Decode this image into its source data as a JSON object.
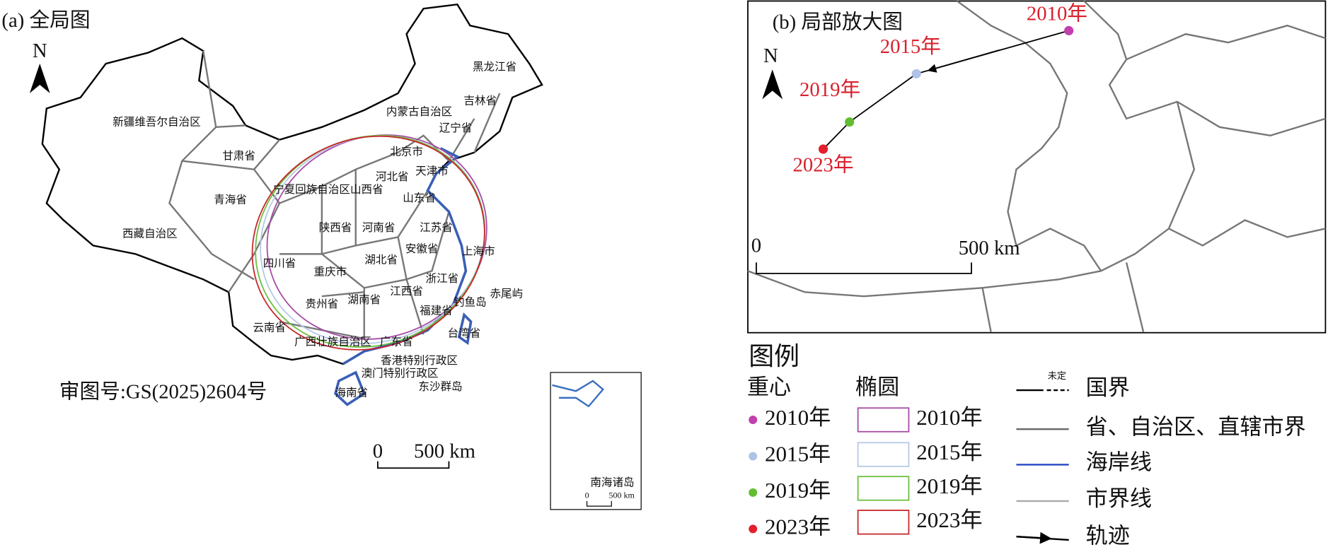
{
  "panel_a": {
    "title": "(a) 全局图",
    "north": "N",
    "labels": [
      "新疆维吾尔自治区",
      "甘肃省",
      "青海省",
      "西藏自治区",
      "内蒙古自治区",
      "黑龙江省",
      "吉林省",
      "辽宁省",
      "北京市",
      "天津市",
      "河北省",
      "山西省",
      "宁夏回族自治区",
      "山东省",
      "陕西省",
      "河南省",
      "江苏省",
      "上海市",
      "安徽省",
      "湖北省",
      "四川省",
      "重庆市",
      "浙江省",
      "江西省",
      "湖南省",
      "贵州省",
      "福建省",
      "钓鱼岛",
      "赤尾屿",
      "云南省",
      "台湾省",
      "广西壮族自治区",
      "广东省",
      "香港特别行政区",
      "澳门特别行政区",
      "东沙群岛",
      "海南省"
    ],
    "approval": "审图号:GS(2025)2604号",
    "scale": {
      "zero": "0",
      "distance": "500 km"
    },
    "inset": {
      "title": "南海诸岛",
      "zero": "0",
      "distance": "500 km"
    }
  },
  "panel_b": {
    "title": "(b) 局部放大图",
    "north": "N",
    "centroids": [
      {
        "year": "2010年",
        "color": "#c23fb0"
      },
      {
        "year": "2015年",
        "color": "#aec3e6"
      },
      {
        "year": "2019年",
        "color": "#62be30"
      },
      {
        "year": "2023年",
        "color": "#e3202c"
      }
    ],
    "scale": {
      "zero": "0",
      "distance": "500 km"
    }
  },
  "legend": {
    "title": "图例",
    "centroid_header": "重心",
    "ellipse_header": "椭圆",
    "centroids": [
      {
        "label": "2010年",
        "color": "#c23fb0"
      },
      {
        "label": "2015年",
        "color": "#aec3e6"
      },
      {
        "label": "2019年",
        "color": "#62be30"
      },
      {
        "label": "2023年",
        "color": "#e3202c"
      }
    ],
    "ellipses": [
      {
        "label": "2010年",
        "color": "#a64ca6"
      },
      {
        "label": "2015年",
        "color": "#b5c8e6"
      },
      {
        "label": "2019年",
        "color": "#6cc040"
      },
      {
        "label": "2023年",
        "color": "#c8282c"
      }
    ],
    "lines": [
      {
        "label": "国界",
        "note": "未定"
      },
      {
        "label": "省、自治区、直辖市界"
      },
      {
        "label": "海岸线"
      },
      {
        "label": "市界线"
      },
      {
        "label": "轨迹"
      }
    ]
  }
}
